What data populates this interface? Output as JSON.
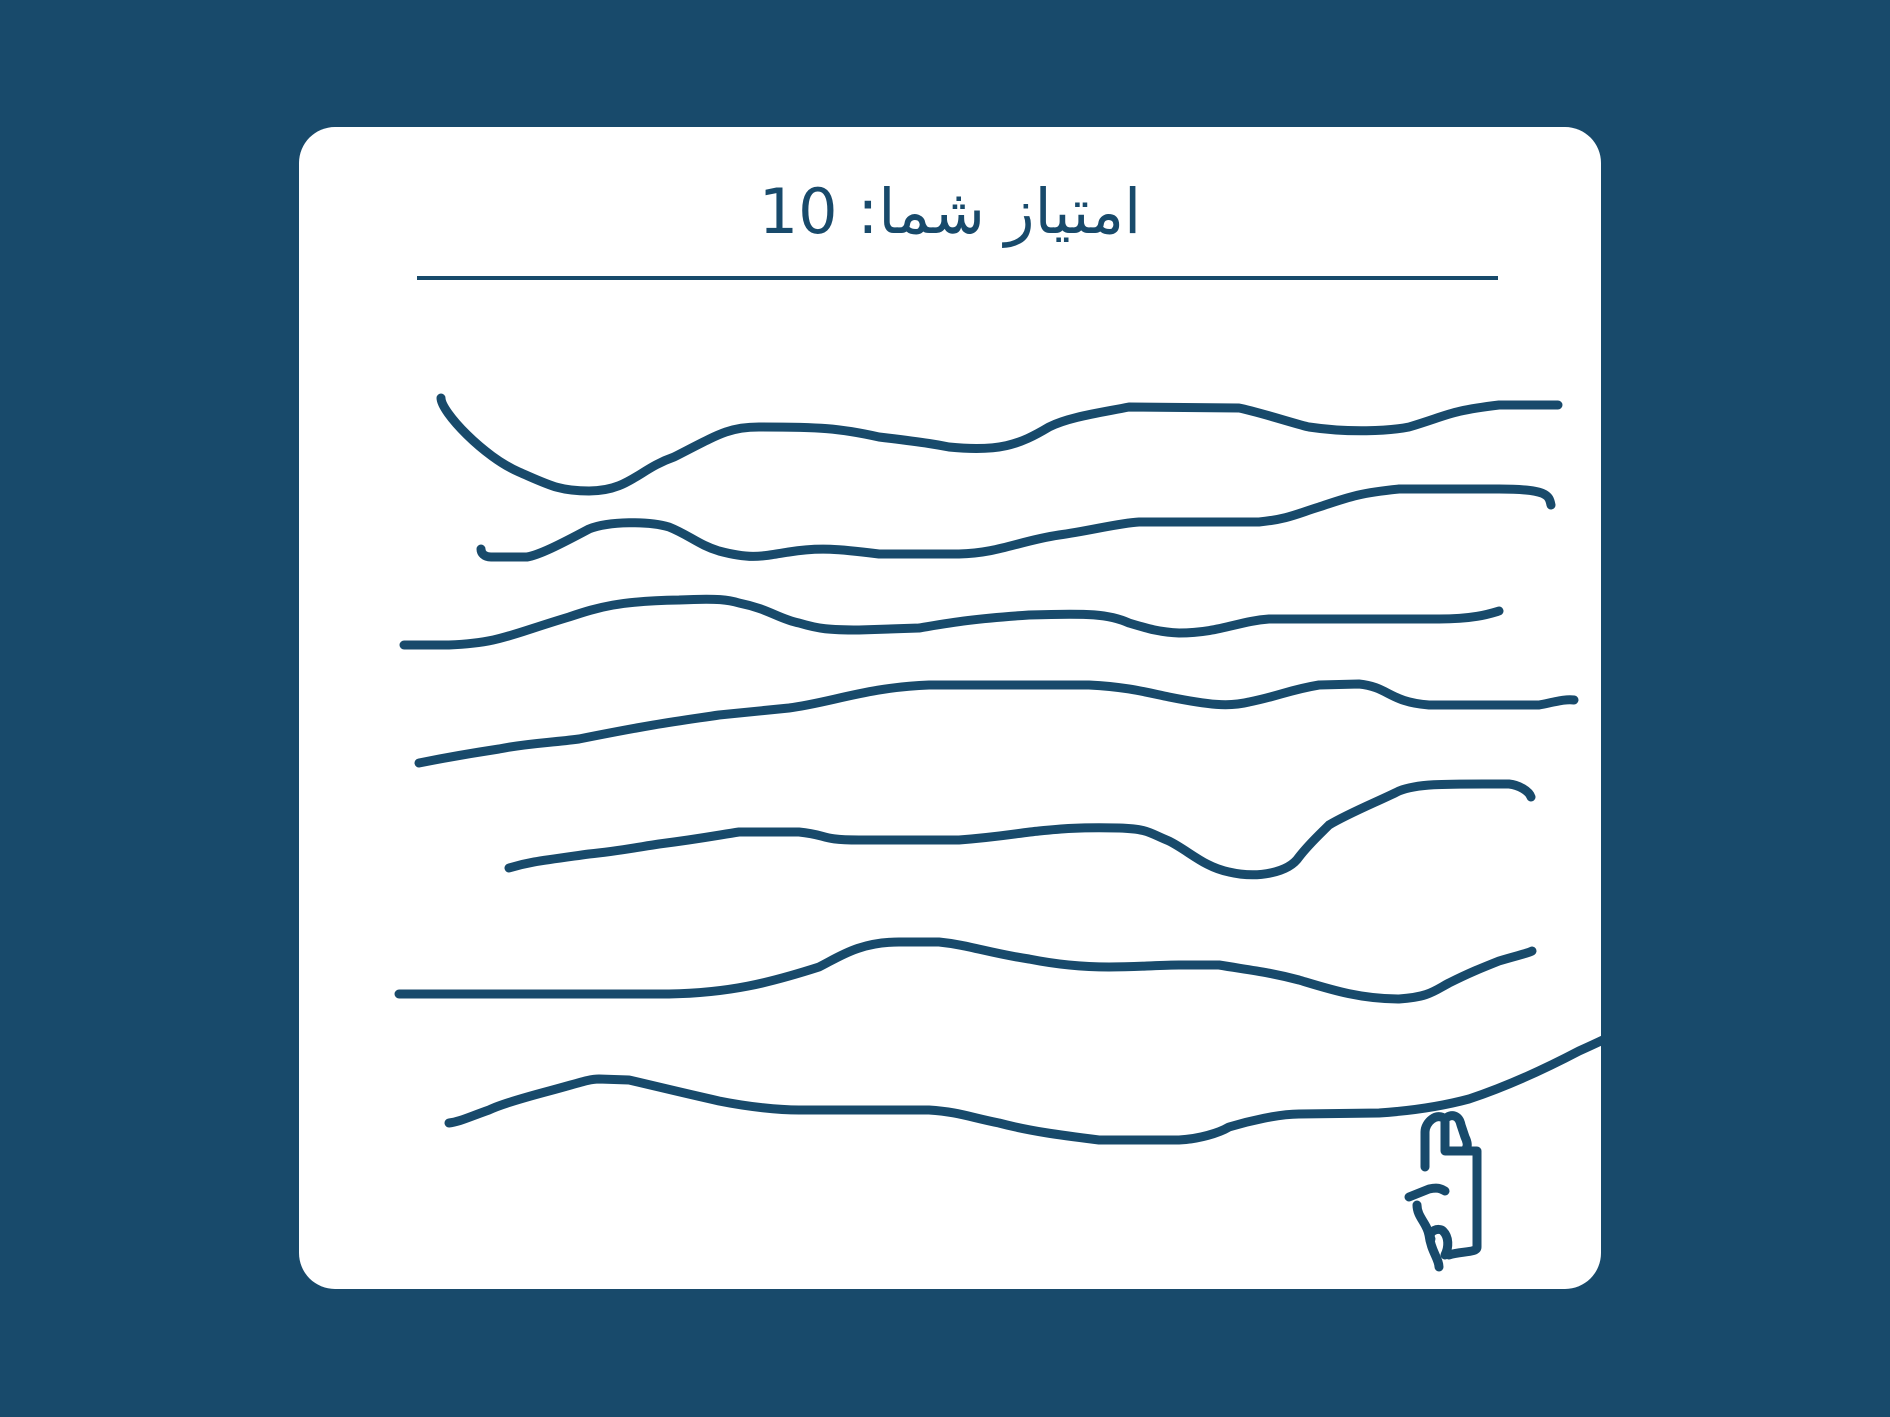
{
  "score": {
    "text": "امتیاز شما: 10"
  },
  "colors": {
    "background": "#184a6b",
    "card": "#ffffff",
    "ink": "#184a6b"
  },
  "drawing": {
    "tool_icon": "pen-hand-cursor-icon",
    "stroke_count": 7
  }
}
